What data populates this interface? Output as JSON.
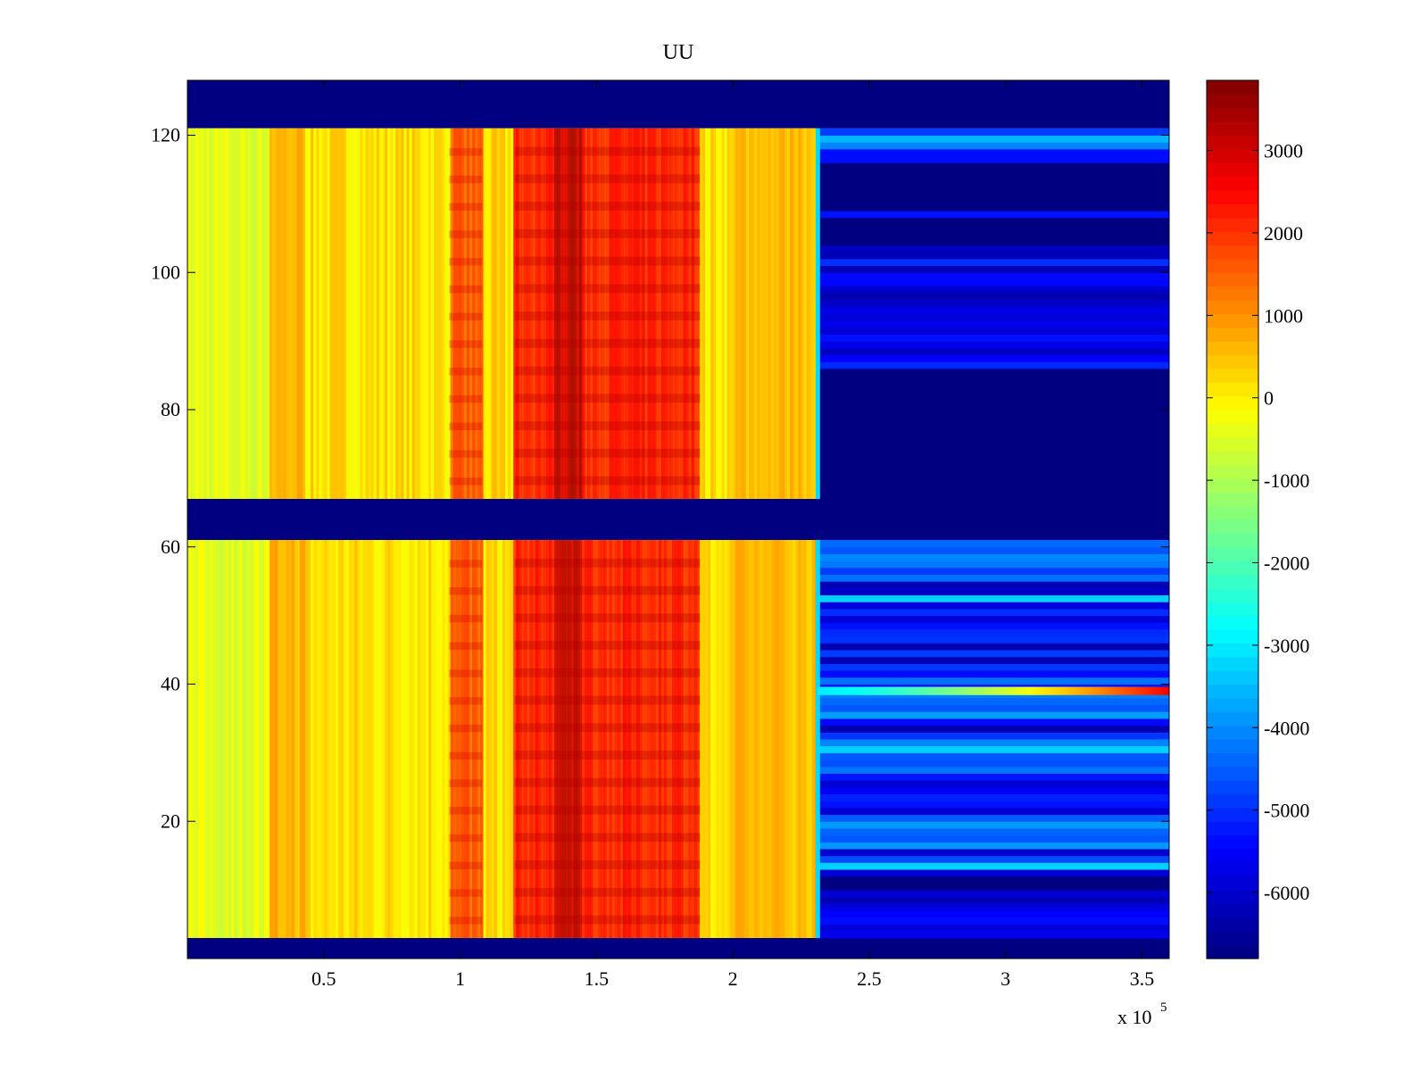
{
  "chart_data": {
    "type": "heatmap",
    "title": "UU",
    "xlabel": "",
    "ylabel": "",
    "x_multiplier_label": "x 10",
    "x_multiplier_exponent": "5",
    "xlim": [
      0,
      3.6
    ],
    "ylim": [
      0,
      128
    ],
    "x_ticks": [
      {
        "value": 0.5,
        "label": "0.5"
      },
      {
        "value": 1,
        "label": "1"
      },
      {
        "value": 1.5,
        "label": "1.5"
      },
      {
        "value": 2,
        "label": "2"
      },
      {
        "value": 2.5,
        "label": "2.5"
      },
      {
        "value": 3,
        "label": "3"
      },
      {
        "value": 3.5,
        "label": "3.5"
      }
    ],
    "y_ticks": [
      {
        "value": 20,
        "label": "20"
      },
      {
        "value": 40,
        "label": "40"
      },
      {
        "value": 60,
        "label": "60"
      },
      {
        "value": 80,
        "label": "80"
      },
      {
        "value": 100,
        "label": "100"
      },
      {
        "value": 120,
        "label": "120"
      }
    ],
    "colormap": "jet",
    "clim": [
      -6800,
      3850
    ],
    "colorbar_ticks": [
      {
        "value": 3000,
        "label": "3000"
      },
      {
        "value": 2000,
        "label": "2000"
      },
      {
        "value": 1000,
        "label": "1000"
      },
      {
        "value": 0,
        "label": "0"
      },
      {
        "value": -1000,
        "label": "-1000"
      },
      {
        "value": -2000,
        "label": "-2000"
      },
      {
        "value": -3000,
        "label": "-3000"
      },
      {
        "value": -4000,
        "label": "-4000"
      },
      {
        "value": -5000,
        "label": "-5000"
      },
      {
        "value": -6000,
        "label": "-6000"
      }
    ],
    "regions": [
      {
        "name": "empty-top-band",
        "x": [
          0,
          3.6
        ],
        "y": [
          121,
          128
        ],
        "value": -6800
      },
      {
        "name": "empty-middle-band",
        "x": [
          0,
          3.6
        ],
        "y": [
          61,
          67
        ],
        "value": -6800
      },
      {
        "name": "empty-bottom-band",
        "x": [
          0,
          3.6
        ],
        "y": [
          0,
          3
        ],
        "value": -6800
      },
      {
        "name": "active-upper-block",
        "x": [
          0,
          2.31
        ],
        "y": [
          67,
          121
        ],
        "value": 300
      },
      {
        "name": "active-lower-block",
        "x": [
          0,
          2.31
        ],
        "y": [
          3,
          61
        ],
        "value": 300
      },
      {
        "name": "inactive-upper-block",
        "x": [
          2.31,
          3.6
        ],
        "y": [
          67,
          121
        ],
        "value": -6200
      },
      {
        "name": "inactive-lower-block",
        "x": [
          2.31,
          3.6
        ],
        "y": [
          3,
          61
        ],
        "value": -5300
      }
    ],
    "hot_column_bands": [
      {
        "x": [
          0.3,
          0.43
        ],
        "value": 900
      },
      {
        "x": [
          0.96,
          1.08
        ],
        "value": 1800
      },
      {
        "x": [
          1.2,
          1.88
        ],
        "value": 2500
      },
      {
        "x": [
          1.35,
          1.45
        ],
        "value": 3400
      },
      {
        "x": [
          2.0,
          2.31
        ],
        "value": 800
      }
    ],
    "hot_row_stripe": {
      "y": 39,
      "x_range": [
        2.31,
        3.6
      ],
      "value_start": -3000,
      "value_end": 2600
    }
  }
}
